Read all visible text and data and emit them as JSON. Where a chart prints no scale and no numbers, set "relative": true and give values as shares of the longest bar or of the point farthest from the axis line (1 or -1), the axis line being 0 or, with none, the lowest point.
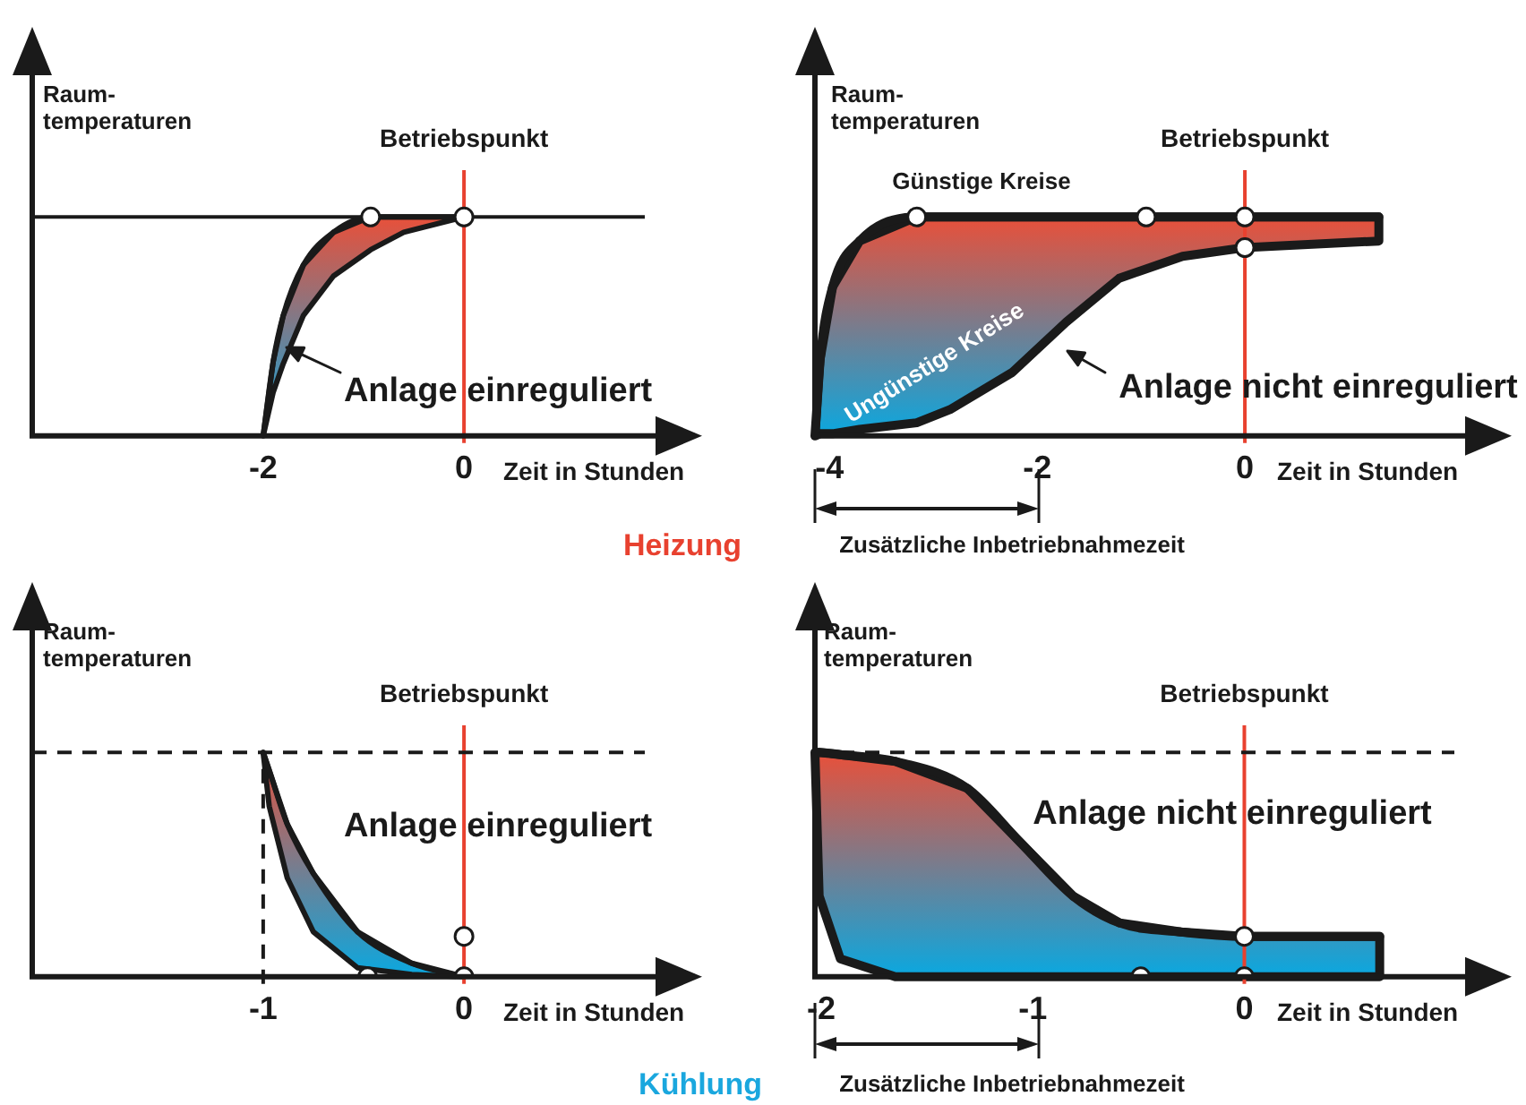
{
  "chart_data": [
    {
      "type": "line",
      "relative": true,
      "ylabel": "Raum-\ntemperaturen",
      "xlabel": "Zeit in Stunden",
      "xlim": [
        -4.3,
        2.3
      ],
      "xticks": [
        -2,
        0
      ],
      "tick_labels": "x",
      "grid": false,
      "legend": false,
      "line_style": "solid",
      "ref_lines": [
        {
          "axis": "x",
          "value": 0,
          "label": "Betriebspunkt",
          "color": "#e8412f"
        },
        {
          "axis": "y",
          "value": 1,
          "color": "#1a1a1a"
        }
      ],
      "annotations": [
        "Anlage einreguliert",
        "Heizung"
      ],
      "series": [
        {
          "color": "#1a1a1a",
          "x": [
            -2,
            -1.9,
            -1.8,
            -1.6,
            -1.3,
            -0.93,
            -0.6,
            0
          ],
          "values": [
            0,
            0.34,
            0.55,
            0.78,
            0.93,
            1,
            1,
            1
          ],
          "upper": [
            0,
            0.34,
            0.55,
            0.78,
            0.93,
            1,
            1,
            1
          ],
          "lower": [
            0,
            0.2,
            0.33,
            0.55,
            0.73,
            0.85,
            0.93,
            1
          ]
        },
        {
          "type": "scatter",
          "marker": "circle",
          "color": "#ffffff",
          "x": [
            -0.93,
            0
          ],
          "values": [
            1,
            1
          ]
        }
      ]
    },
    {
      "type": "line",
      "relative": true,
      "ylabel": "Raum-\ntemperaturen",
      "xlabel": "Zeit in Stunden",
      "xlim": [
        -4.14,
        2.5
      ],
      "xticks": [
        -4,
        -2,
        0
      ],
      "tick_labels": "x",
      "grid": false,
      "legend": false,
      "line_style": "solid",
      "ref_lines": [
        {
          "axis": "x",
          "value": 0,
          "label": "Betriebspunkt",
          "color": "#e8412f"
        }
      ],
      "annotations": [
        "Anlage nicht einreguliert",
        "Zusätzliche Inbetriebnahmezeit",
        "Günstige Kreise",
        "Ungünstige Kreise"
      ],
      "series": [
        {
          "color": "#1a1a1a",
          "x": [
            -4.14,
            -4.09,
            -3.97,
            -3.71,
            -3.16,
            -2.84,
            -2.24,
            -1.72,
            -1.21,
            -0.6,
            0,
            1.29
          ],
          "values": [
            0,
            0.35,
            0.68,
            0.89,
            1,
            1,
            1,
            1,
            1,
            1,
            1,
            1
          ],
          "upper": [
            0,
            0.35,
            0.68,
            0.89,
            1,
            1,
            1,
            1,
            1,
            1,
            1,
            1
          ],
          "lower": [
            0,
            0.01,
            0.01,
            0.03,
            0.06,
            0.12,
            0.29,
            0.52,
            0.72,
            0.82,
            0.86,
            0.89
          ]
        },
        {
          "type": "scatter",
          "marker": "circle",
          "color": "#ffffff",
          "x": [
            -3.16,
            -0.95,
            0,
            0
          ],
          "values": [
            1,
            1,
            1,
            0.86
          ]
        }
      ]
    },
    {
      "type": "line",
      "relative": true,
      "ylabel": "Raum-\ntemperaturen",
      "xlabel": "Zeit in Stunden",
      "xlim": [
        -2.15,
        1.15
      ],
      "xticks": [
        -1,
        0
      ],
      "tick_labels": "x",
      "grid": false,
      "legend": false,
      "line_style": "solid",
      "ref_lines": [
        {
          "axis": "x",
          "value": 0,
          "label": "Betriebspunkt",
          "color": "#e8412f"
        },
        {
          "axis": "y",
          "value": 1,
          "color": "#1a1a1a",
          "line_style": "dashed"
        },
        {
          "axis": "x",
          "value": -1,
          "color": "#1a1a1a",
          "line_style": "dashed"
        }
      ],
      "annotations": [
        "Anlage einreguliert",
        "Kühlung"
      ],
      "series": [
        {
          "color": "#1a1a1a",
          "x": [
            -1,
            -0.97,
            -0.88,
            -0.75,
            -0.53,
            -0.26,
            0
          ],
          "values": [
            1,
            0.92,
            0.68,
            0.46,
            0.2,
            0.06,
            0
          ],
          "upper": [
            1,
            0.92,
            0.68,
            0.46,
            0.2,
            0.06,
            0
          ],
          "lower": [
            1,
            0.76,
            0.44,
            0.2,
            0.04,
            0.01,
            0
          ]
        },
        {
          "type": "scatter",
          "marker": "circle",
          "color": "#ffffff",
          "x": [
            -0.48,
            0,
            0
          ],
          "values": [
            0,
            0,
            0.18
          ]
        }
      ]
    },
    {
      "type": "line",
      "relative": true,
      "ylabel": "Raum-\ntemperaturen",
      "xlabel": "Zeit in Stunden",
      "xlim": [
        -2.03,
        1.23
      ],
      "xticks": [
        -2,
        -1,
        0
      ],
      "tick_labels": "x",
      "grid": false,
      "legend": false,
      "line_style": "solid",
      "ref_lines": [
        {
          "axis": "x",
          "value": 0,
          "label": "Betriebspunkt",
          "color": "#e8412f"
        },
        {
          "axis": "y",
          "value": 1,
          "color": "#1a1a1a",
          "line_style": "dashed"
        }
      ],
      "annotations": [
        "Anlage nicht einreguliert",
        "Zusätzliche Inbetriebnahmezeit"
      ],
      "series": [
        {
          "color": "#1a1a1a",
          "x": [
            -2.03,
            -2.01,
            -1.91,
            -1.65,
            -1.31,
            -1.06,
            -0.81,
            -0.59,
            -0.3,
            0,
            0.64
          ],
          "values": [
            1,
            1,
            0.99,
            0.96,
            0.84,
            0.6,
            0.36,
            0.24,
            0.2,
            0.18,
            0.18
          ],
          "upper": [
            1,
            1,
            0.99,
            0.96,
            0.84,
            0.6,
            0.36,
            0.24,
            0.2,
            0.18,
            0.18
          ],
          "lower": [
            1,
            0.36,
            0.08,
            0,
            0,
            0,
            0,
            0,
            0,
            0,
            0
          ]
        },
        {
          "type": "scatter",
          "marker": "circle",
          "color": "#ffffff",
          "x": [
            -0.49,
            0,
            0
          ],
          "values": [
            0,
            0,
            0.18
          ]
        }
      ]
    }
  ]
}
